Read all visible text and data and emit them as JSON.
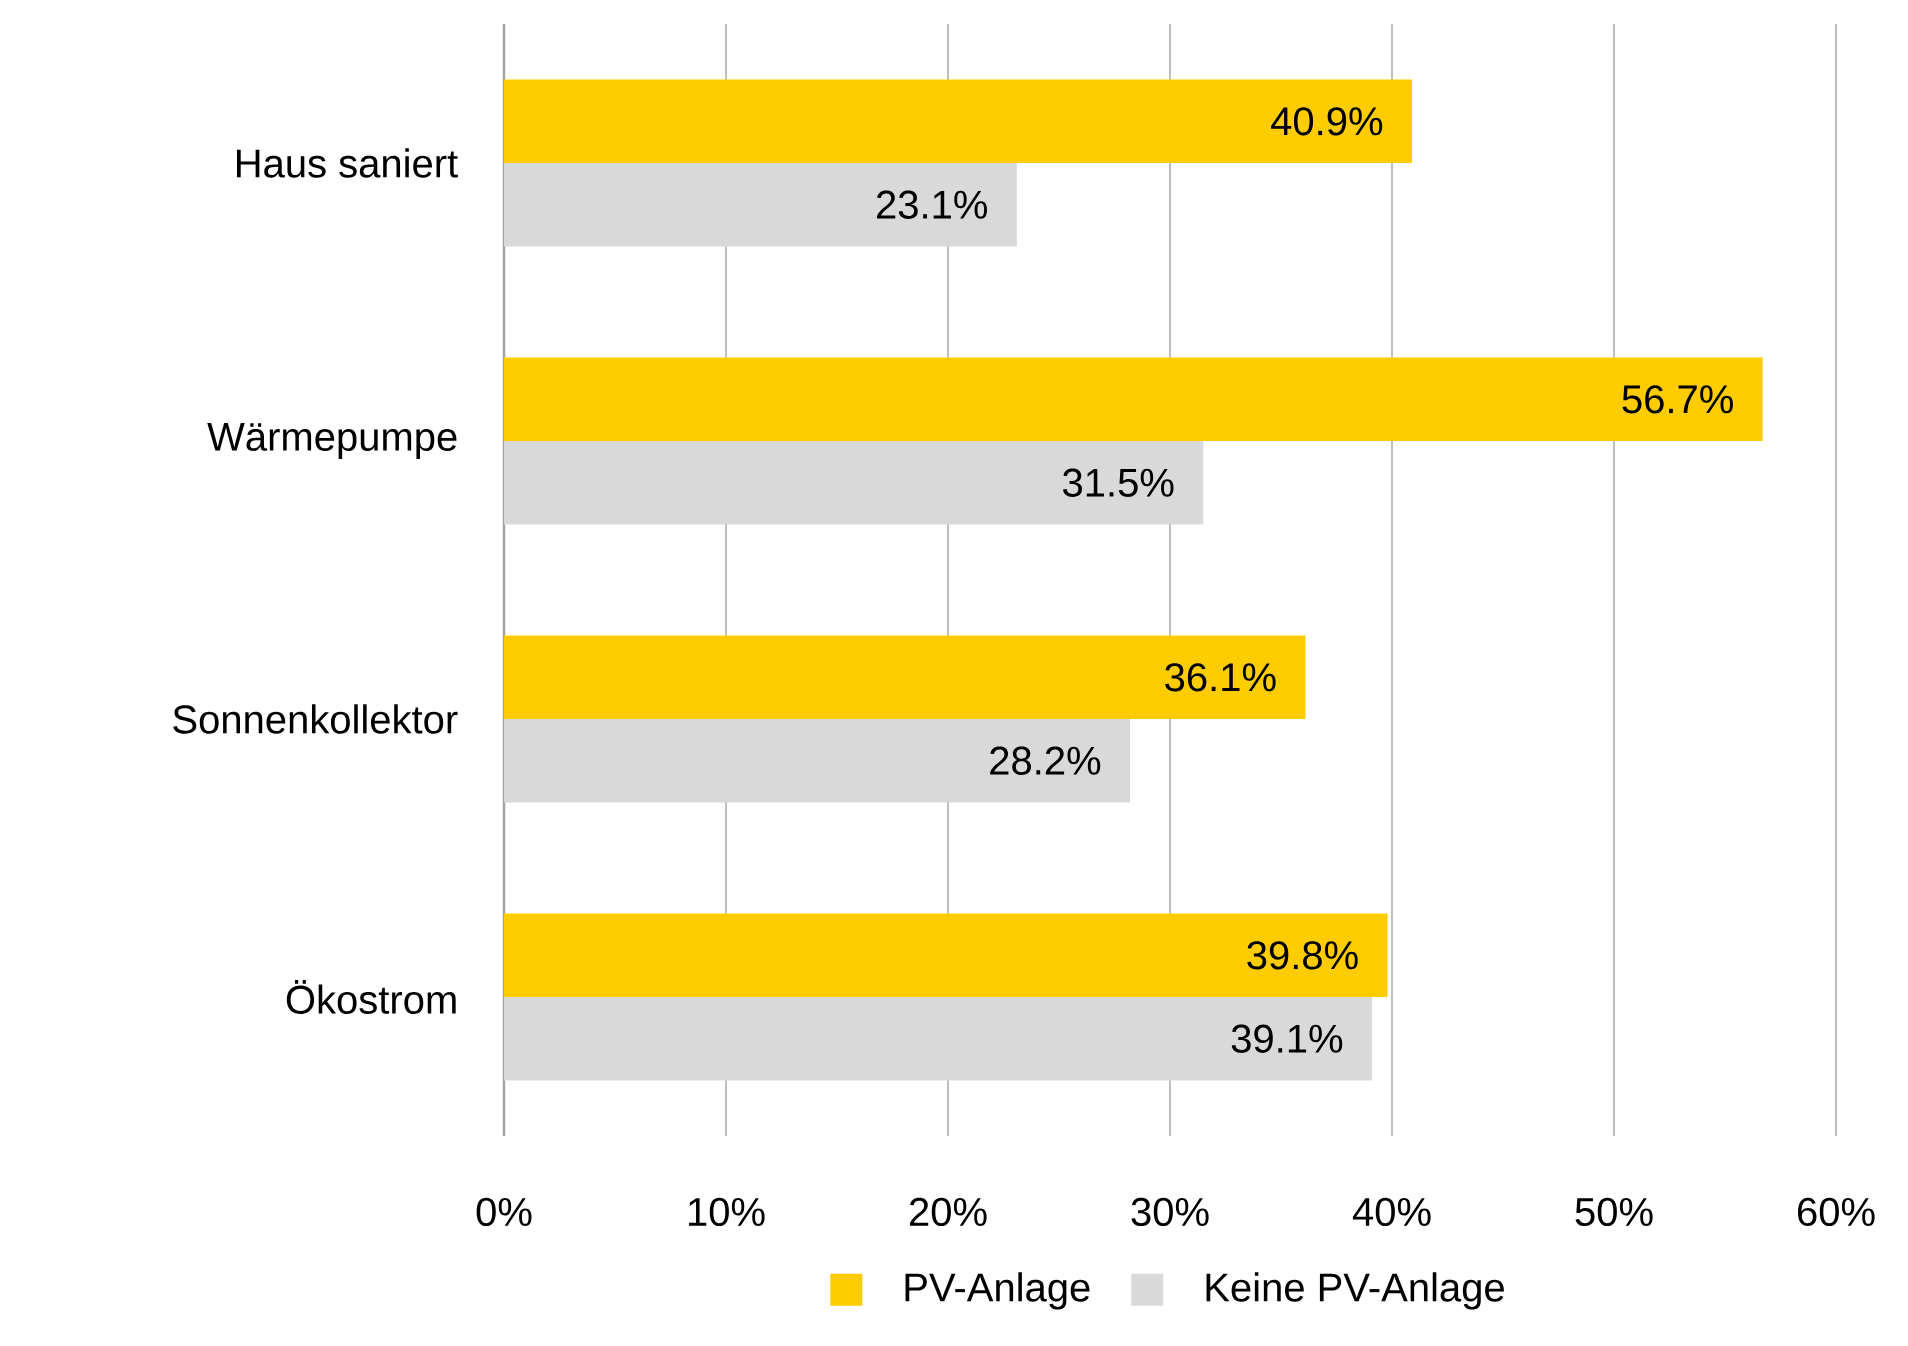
{
  "chart_data": {
    "type": "bar",
    "orientation": "horizontal",
    "categories": [
      "Haus saniert",
      "Wärmepumpe",
      "Sonnenkollektor",
      "Ökostrom"
    ],
    "series": [
      {
        "name": "PV-Anlage",
        "color": "#ffcc00",
        "values": [
          40.9,
          56.7,
          36.1,
          39.8
        ],
        "value_labels": [
          "40.9%",
          "56.7%",
          "36.1%",
          "39.8%"
        ]
      },
      {
        "name": "Keine PV-Anlage",
        "color": "#d9d9d9",
        "values": [
          23.1,
          31.5,
          28.2,
          39.1
        ],
        "value_labels": [
          "23.1%",
          "31.5%",
          "28.2%",
          "39.1%"
        ]
      }
    ],
    "xlim": [
      0,
      60
    ],
    "xticks": [
      {
        "value": 0,
        "label": "0%"
      },
      {
        "value": 10,
        "label": "10%"
      },
      {
        "value": 20,
        "label": "20%"
      },
      {
        "value": 30,
        "label": "30%"
      },
      {
        "value": 40,
        "label": "40%"
      },
      {
        "value": 50,
        "label": "50%"
      },
      {
        "value": 60,
        "label": "60%"
      }
    ],
    "grid": "x",
    "legend": "bottom"
  }
}
